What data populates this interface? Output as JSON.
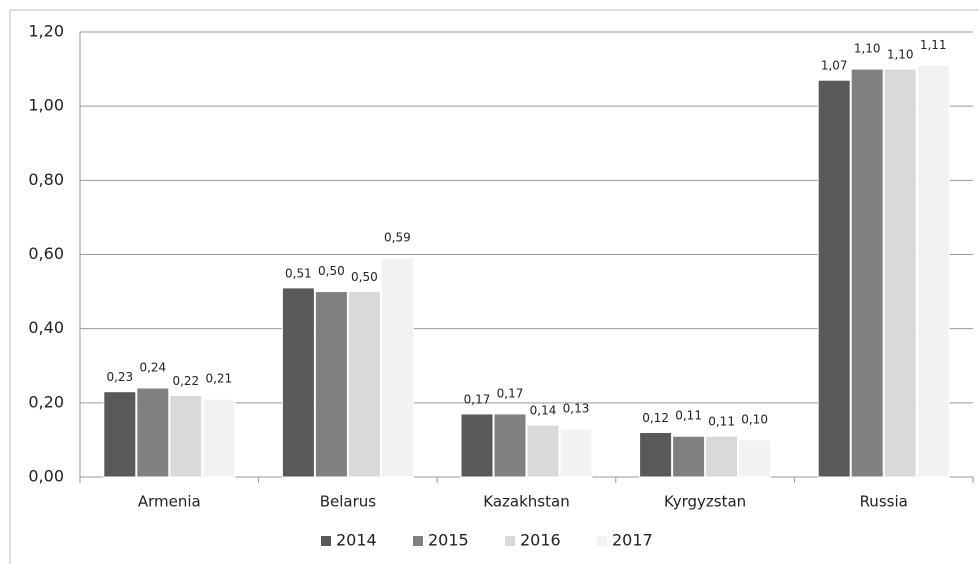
{
  "chart_data": {
    "type": "bar",
    "categories": [
      "Armenia",
      "Belarus",
      "Kazakhstan",
      "Kyrgyzstan",
      "Russia"
    ],
    "series": [
      {
        "name": "2014",
        "color": "#595959",
        "values": [
          0.23,
          0.51,
          0.17,
          0.12,
          1.07
        ],
        "value_labels": [
          "0,23",
          "0,51",
          "0,17",
          "0,12",
          "1,07"
        ]
      },
      {
        "name": "2015",
        "color": "#808080",
        "values": [
          0.24,
          0.5,
          0.17,
          0.11,
          1.1
        ],
        "value_labels": [
          "0,24",
          "0,50",
          "0,17",
          "0,11",
          "1,10"
        ]
      },
      {
        "name": "2016",
        "color": "#d9d9d9",
        "values": [
          0.22,
          0.5,
          0.14,
          0.11,
          1.1
        ],
        "value_labels": [
          "0,22",
          "0,50",
          "0,14",
          "0,11",
          "1,10"
        ]
      },
      {
        "name": "2017",
        "color": "#f2f2f2",
        "values": [
          0.21,
          0.59,
          0.13,
          0.1,
          1.11
        ],
        "value_labels": [
          "0,21",
          "0,59",
          "0,13",
          "0,10",
          "1,11"
        ]
      }
    ],
    "ylim": [
      0,
      1.2
    ],
    "yticks": [
      {
        "value": 0,
        "label": "0,00"
      },
      {
        "value": 0.2,
        "label": "0,20"
      },
      {
        "value": 0.4,
        "label": "0,40"
      },
      {
        "value": 0.6,
        "label": "0,60"
      },
      {
        "value": 0.8,
        "label": "0,80"
      },
      {
        "value": 1.0,
        "label": "1,00"
      },
      {
        "value": 1.2,
        "label": "1,20"
      }
    ],
    "grid": true,
    "legend": "bottom"
  }
}
